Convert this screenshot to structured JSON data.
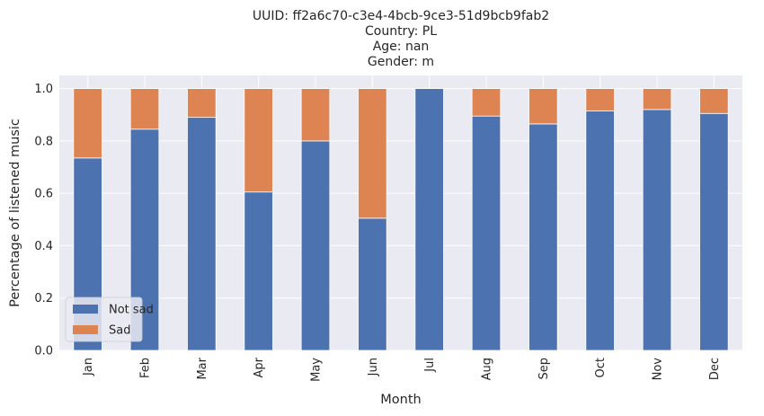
{
  "chart_data": {
    "type": "bar",
    "stacked": true,
    "title_lines": [
      "UUID: ff2a6c70-c3e4-4bcb-9ce3-51d9bcb9fab2",
      "Country: PL",
      "Age: nan",
      "Gender: m"
    ],
    "xlabel": "Month",
    "ylabel": "Percentage of listened music",
    "categories": [
      "Jan",
      "Feb",
      "Mar",
      "Apr",
      "May",
      "Jun",
      "Jul",
      "Aug",
      "Sep",
      "Oct",
      "Nov",
      "Dec"
    ],
    "series": [
      {
        "name": "Not sad",
        "color": "#4c72b0",
        "values": [
          0.735,
          0.845,
          0.89,
          0.605,
          0.8,
          0.505,
          1.0,
          0.895,
          0.865,
          0.915,
          0.92,
          0.905
        ]
      },
      {
        "name": "Sad",
        "color": "#dd8452",
        "values": [
          0.265,
          0.155,
          0.11,
          0.395,
          0.2,
          0.495,
          0.0,
          0.105,
          0.135,
          0.085,
          0.08,
          0.095
        ]
      }
    ],
    "ylim": [
      0,
      1.05
    ],
    "yticks": [
      "0.0",
      "0.2",
      "0.4",
      "0.6",
      "0.8",
      "1.0"
    ],
    "grid": true,
    "legend_position": "lower-left",
    "plot_background": "#eaeaf2"
  }
}
